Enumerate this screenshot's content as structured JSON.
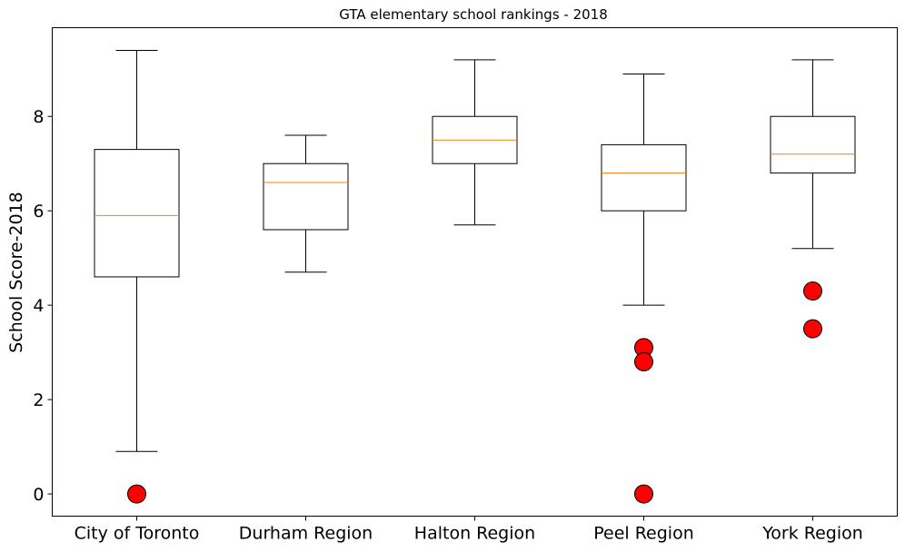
{
  "chart_data": {
    "type": "box",
    "title": "GTA elementary school rankings - 2018",
    "xlabel": "",
    "ylabel": "School Score-2018",
    "ylim": [
      -0.47,
      9.88
    ],
    "yticks": [
      0,
      2,
      4,
      6,
      8
    ],
    "grid": false,
    "categories": [
      "City of Toronto",
      "Durham Region",
      "Halton Region",
      "Peel Region",
      "York Region"
    ],
    "boxes": [
      {
        "category": "City of Toronto",
        "whisker_low": 0.9,
        "q1": 4.6,
        "median": 5.9,
        "q3": 7.3,
        "whisker_high": 9.4,
        "outliers": [
          0.0
        ]
      },
      {
        "category": "Durham Region",
        "whisker_low": 4.7,
        "q1": 5.6,
        "median": 6.6,
        "q3": 7.0,
        "whisker_high": 7.6,
        "outliers": []
      },
      {
        "category": "Halton Region",
        "whisker_low": 5.7,
        "q1": 7.0,
        "median": 7.5,
        "q3": 8.0,
        "whisker_high": 9.2,
        "outliers": []
      },
      {
        "category": "Peel Region",
        "whisker_low": 4.0,
        "q1": 6.0,
        "median": 6.8,
        "q3": 7.4,
        "whisker_high": 8.9,
        "outliers": [
          3.1,
          2.8,
          0.0
        ]
      },
      {
        "category": "York Region",
        "whisker_low": 5.2,
        "q1": 6.8,
        "median": 7.2,
        "q3": 8.0,
        "whisker_high": 9.2,
        "outliers": [
          4.3,
          3.5
        ]
      }
    ],
    "colors": {
      "box_edge": "#000000",
      "median": "#ff7f0e",
      "outlier_fill": "#ff0000",
      "outlier_edge": "#000000"
    }
  }
}
